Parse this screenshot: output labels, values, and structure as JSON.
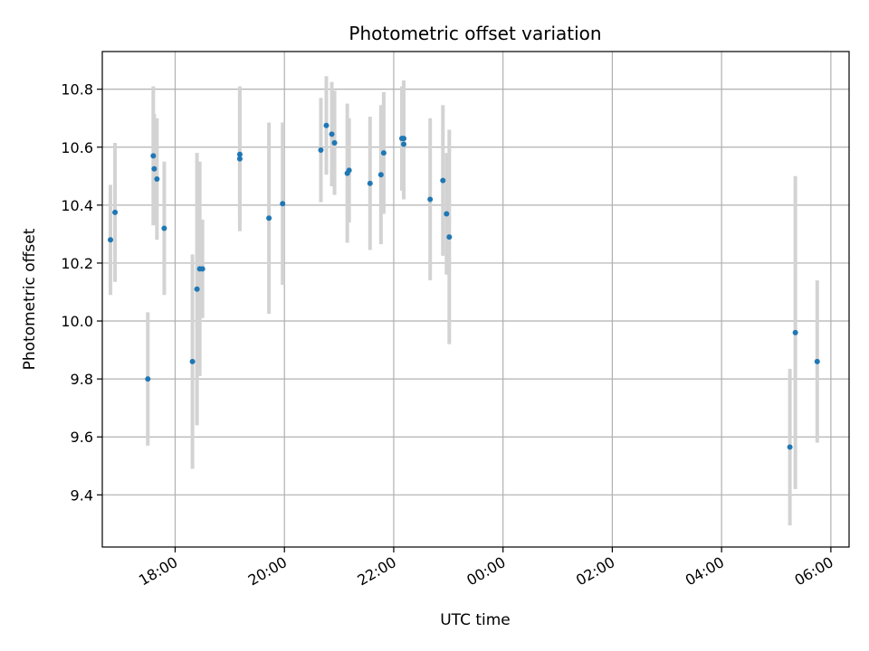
{
  "chart_data": {
    "type": "scatter",
    "title": "Photometric offset variation",
    "xlabel": "UTC time",
    "ylabel": "Photometric offset",
    "x_unit": "UTC time of day",
    "x_range": [
      "16:40",
      "06:20 (+1 day)"
    ],
    "xlim": [
      "16:40",
      "06:20"
    ],
    "ylim": [
      9.22,
      10.93
    ],
    "x_ticks": [
      {
        "label": "18:00",
        "time": "18:00"
      },
      {
        "label": "20:00",
        "time": "20:00"
      },
      {
        "label": "22:00",
        "time": "22:00"
      },
      {
        "label": "00:00",
        "time": "00:00"
      },
      {
        "label": "02:00",
        "time": "02:00"
      },
      {
        "label": "04:00",
        "time": "04:00"
      },
      {
        "label": "06:00",
        "time": "06:00"
      }
    ],
    "y_ticks": [
      {
        "label": "9.4",
        "value": 9.4
      },
      {
        "label": "9.6",
        "value": 9.6
      },
      {
        "label": "9.8",
        "value": 9.8
      },
      {
        "label": "10.0",
        "value": 10.0
      },
      {
        "label": "10.2",
        "value": 10.2
      },
      {
        "label": "10.4",
        "value": 10.4
      },
      {
        "label": "10.6",
        "value": 10.6
      },
      {
        "label": "10.8",
        "value": 10.8
      }
    ],
    "grid": true,
    "marker_color": "#1f77b4",
    "errorbar_color": "#d3d3d3",
    "series": [
      {
        "points": [
          {
            "time": "16:49",
            "y": 10.28,
            "err": 0.19
          },
          {
            "time": "16:54",
            "y": 10.375,
            "err": 0.24
          },
          {
            "time": "17:30",
            "y": 9.8,
            "err": 0.23
          },
          {
            "time": "17:36",
            "y": 10.57,
            "err": 0.24
          },
          {
            "time": "17:37",
            "y": 10.525,
            "err": 0.19
          },
          {
            "time": "17:40",
            "y": 10.49,
            "err": 0.21
          },
          {
            "time": "17:48",
            "y": 10.32,
            "err": 0.23
          },
          {
            "time": "18:19",
            "y": 9.86,
            "err": 0.37
          },
          {
            "time": "18:24",
            "y": 10.11,
            "err": 0.47
          },
          {
            "time": "18:27",
            "y": 10.18,
            "err": 0.37
          },
          {
            "time": "18:30",
            "y": 10.18,
            "err": 0.17
          },
          {
            "time": "19:11",
            "y": 10.575,
            "err": 0.23
          },
          {
            "time": "19:11",
            "y": 10.56,
            "err": 0.25
          },
          {
            "time": "19:43",
            "y": 10.355,
            "err": 0.33
          },
          {
            "time": "19:58",
            "y": 10.405,
            "err": 0.28
          },
          {
            "time": "20:40",
            "y": 10.59,
            "err": 0.18
          },
          {
            "time": "20:46",
            "y": 10.675,
            "err": 0.17
          },
          {
            "time": "20:52",
            "y": 10.645,
            "err": 0.18
          },
          {
            "time": "20:55",
            "y": 10.615,
            "err": 0.18
          },
          {
            "time": "21:09",
            "y": 10.51,
            "err": 0.24
          },
          {
            "time": "21:11",
            "y": 10.52,
            "err": 0.18
          },
          {
            "time": "21:34",
            "y": 10.475,
            "err": 0.23
          },
          {
            "time": "21:46",
            "y": 10.505,
            "err": 0.24
          },
          {
            "time": "21:49",
            "y": 10.58,
            "err": 0.21
          },
          {
            "time": "22:09",
            "y": 10.63,
            "err": 0.18
          },
          {
            "time": "22:11",
            "y": 10.63,
            "err": 0.2
          },
          {
            "time": "22:11",
            "y": 10.61,
            "err": 0.19
          },
          {
            "time": "22:40",
            "y": 10.42,
            "err": 0.28
          },
          {
            "time": "22:54",
            "y": 10.485,
            "err": 0.26
          },
          {
            "time": "22:58",
            "y": 10.37,
            "err": 0.21
          },
          {
            "time": "23:01",
            "y": 10.29,
            "err": 0.37
          },
          {
            "time": "05:15",
            "y": 9.565,
            "err": 0.27
          },
          {
            "time": "05:21",
            "y": 9.96,
            "err": 0.54
          },
          {
            "time": "05:45",
            "y": 9.86,
            "err": 0.28
          }
        ]
      }
    ]
  }
}
